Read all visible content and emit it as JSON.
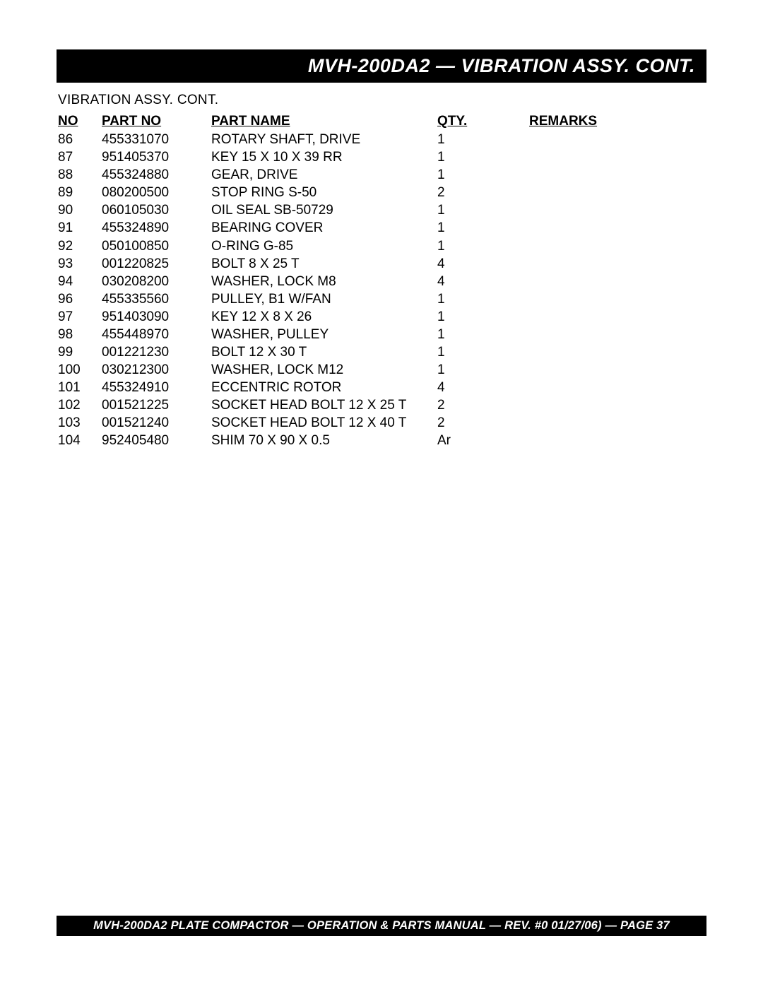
{
  "header_title": "MVH-200DA2 — VIBRATION ASSY. CONT.",
  "subtitle": "VIBRATION  ASSY. CONT.",
  "columns": {
    "no": "NO",
    "part_no": "PART NO",
    "part_name": "PART NAME",
    "qty": "QTY.",
    "remarks": "REMARKS"
  },
  "rows": [
    {
      "no": "86",
      "part_no": "455331070",
      "name": "ROTARY SHAFT, DRIVE",
      "qty": "1",
      "remarks": ""
    },
    {
      "no": "87",
      "part_no": "951405370",
      "name": "KEY 15 X 10 X 39  RR",
      "qty": "1",
      "remarks": ""
    },
    {
      "no": "88",
      "part_no": "455324880",
      "name": "GEAR, DRIVE",
      "qty": "1",
      "remarks": ""
    },
    {
      "no": "89",
      "part_no": "080200500",
      "name": "STOP RING S-50",
      "qty": "2",
      "remarks": ""
    },
    {
      "no": "90",
      "part_no": "060105030",
      "name": "OIL SEAL SB-50729",
      "qty": "1",
      "remarks": ""
    },
    {
      "no": "91",
      "part_no": "455324890",
      "name": "BEARING COVER",
      "qty": "1",
      "remarks": ""
    },
    {
      "no": "92",
      "part_no": "050100850",
      "name": "O-RING G-85",
      "qty": "1",
      "remarks": ""
    },
    {
      "no": "93",
      "part_no": "001220825",
      "name": "BOLT 8 X 25 T",
      "qty": "4",
      "remarks": ""
    },
    {
      "no": "94",
      "part_no": "030208200",
      "name": "WASHER, LOCK M8",
      "qty": "4",
      "remarks": ""
    },
    {
      "no": "96",
      "part_no": "455335560",
      "name": "PULLEY, B1 W/FAN",
      "qty": "1",
      "remarks": ""
    },
    {
      "no": "97",
      "part_no": "951403090",
      "name": "KEY 12 X 8 X 26",
      "qty": "1",
      "remarks": ""
    },
    {
      "no": "98",
      "part_no": "455448970",
      "name": "WASHER, PULLEY",
      "qty": "1",
      "remarks": ""
    },
    {
      "no": "99",
      "part_no": "001221230",
      "name": "BOLT 12 X 30 T",
      "qty": "1",
      "remarks": ""
    },
    {
      "no": "100",
      "part_no": "030212300",
      "name": "WASHER, LOCK M12",
      "qty": "1",
      "remarks": ""
    },
    {
      "no": "101",
      "part_no": "455324910",
      "name": "ECCENTRIC ROTOR",
      "qty": "4",
      "remarks": ""
    },
    {
      "no": "102",
      "part_no": "001521225",
      "name": "SOCKET HEAD BOLT 12 X 25 T",
      "qty": "2",
      "remarks": ""
    },
    {
      "no": "103",
      "part_no": "001521240",
      "name": "SOCKET HEAD BOLT 12 X 40 T",
      "qty": "2",
      "remarks": ""
    },
    {
      "no": "104",
      "part_no": "952405480",
      "name": "SHIM 70 X 90 X 0.5",
      "qty": "Ar",
      "remarks": ""
    }
  ],
  "footer": "MVH-200DA2 PLATE COMPACTOR — OPERATION & PARTS  MANUAL — REV. #0  01/27/06) — PAGE 37"
}
